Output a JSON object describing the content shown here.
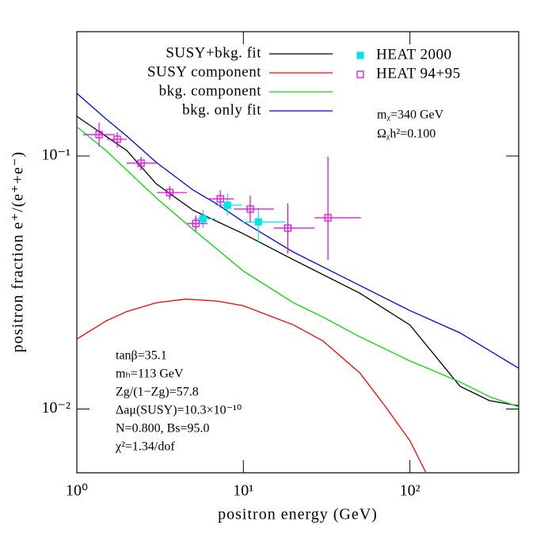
{
  "chart_data": {
    "type": "line",
    "xscale": "log",
    "yscale": "log",
    "x_label": "positron energy  (GeV)",
    "y_label": "positron fraction e⁺/(e⁺+e⁻)",
    "xlim": [
      1,
      450
    ],
    "ylim": [
      0.0056,
      0.31
    ],
    "xticks": [
      {
        "value": 1,
        "label": "10⁰"
      },
      {
        "value": 10,
        "label": "10¹"
      },
      {
        "value": 100,
        "label": "10²"
      }
    ],
    "yticks": [
      {
        "value": 0.01,
        "label": "10⁻²"
      },
      {
        "value": 0.1,
        "label": "10⁻¹"
      }
    ],
    "series": [
      {
        "name": "SUSY+bkg. fit",
        "color": "#000000",
        "x": [
          1,
          2,
          3,
          5,
          10,
          20,
          50,
          100,
          150,
          200,
          300,
          450
        ],
        "values": [
          0.1435,
          0.105,
          0.0776,
          0.061,
          0.0493,
          0.0389,
          0.0287,
          0.0215,
          0.0155,
          0.0123,
          0.0108,
          0.0103
        ]
      },
      {
        "name": "SUSY component",
        "color": "#ff0000",
        "x": [
          1,
          1.5,
          2,
          3,
          4.5,
          7,
          10,
          20,
          30,
          50,
          70,
          100,
          120,
          125
        ],
        "values": [
          0.0189,
          0.0223,
          0.0243,
          0.0263,
          0.0272,
          0.0267,
          0.0256,
          0.0215,
          0.0186,
          0.0139,
          0.0104,
          0.0075,
          0.0059,
          0.0056
        ]
      },
      {
        "name": "bkg. component",
        "color": "#00dd00",
        "x": [
          1,
          1.5,
          2,
          3,
          5,
          7,
          10,
          20,
          30,
          50,
          100,
          200,
          300,
          450
        ],
        "values": [
          0.1306,
          0.105,
          0.0878,
          0.0683,
          0.0512,
          0.0427,
          0.0351,
          0.0263,
          0.0231,
          0.0193,
          0.0155,
          0.0128,
          0.0112,
          0.0102
        ]
      },
      {
        "name": "bkg. only fit",
        "color": "#0000ff",
        "x": [
          1,
          1.5,
          2,
          3,
          5,
          7,
          10,
          20,
          50,
          100,
          200,
          450
        ],
        "values": [
          0.177,
          0.14,
          0.1197,
          0.0944,
          0.0733,
          0.0644,
          0.0549,
          0.0417,
          0.0308,
          0.0245,
          0.02,
          0.0145
        ]
      },
      {
        "name": "HEAT 2000",
        "color": "#00e5e5",
        "marker": "filled-square",
        "x": [
          5.72,
          8.03,
          12.3
        ],
        "xlow": [
          5.06,
          6.8,
          9.8
        ],
        "xhigh": [
          6.8,
          9.8,
          17.9
        ],
        "values": [
          0.0565,
          0.0639,
          0.0549
        ],
        "ylow": [
          0.0518,
          0.0582,
          0.0452
        ],
        "yhigh": [
          0.0612,
          0.0712,
          0.0625
        ]
      },
      {
        "name": "HEAT 94+95",
        "color": "#e000e0",
        "marker": "open-square",
        "x": [
          1.36,
          1.75,
          2.43,
          3.61,
          5.18,
          7.27,
          11.0,
          18.5,
          32.2
        ],
        "xlow": [
          1.09,
          1.52,
          1.99,
          3.03,
          4.59,
          6.1,
          8.76,
          15.2,
          26.8
        ],
        "xhigh": [
          1.69,
          1.99,
          3.03,
          4.59,
          6.1,
          8.76,
          15.2,
          26.8,
          50.8
        ],
        "values": [
          0.1215,
          0.1164,
          0.0937,
          0.0717,
          0.0541,
          0.0677,
          0.0617,
          0.0519,
          0.057
        ],
        "ylow": [
          0.109,
          0.108,
          0.0878,
          0.0672,
          0.0504,
          0.0625,
          0.0549,
          0.0412,
          0.0388
        ],
        "yhigh": [
          0.1354,
          0.124,
          0.0993,
          0.076,
          0.0582,
          0.0733,
          0.0697,
          0.0649,
          0.0993
        ]
      }
    ],
    "annotations_top": [
      "mᵪ=340 GeV",
      "Ωᵪh²=0.100"
    ],
    "annotations_bottom": [
      "tanβ=35.1",
      "mₕ=113 GeV",
      "Zg/(1−Zg)=57.8",
      "Δaμ(SUSY)=10.3×10⁻¹⁰",
      "N=0.800, Bs=95.0",
      "χ²=1.34/dof"
    ]
  }
}
